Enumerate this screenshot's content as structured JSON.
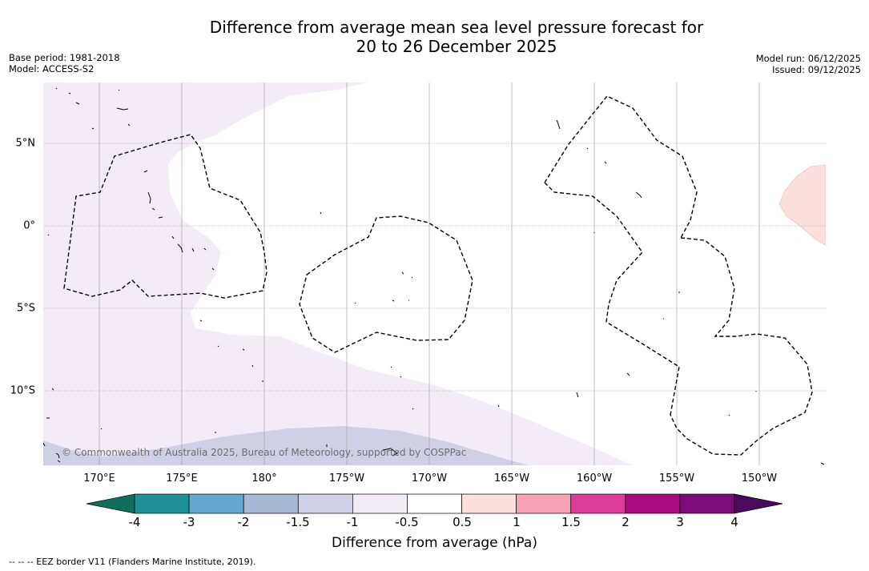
{
  "title": {
    "line1": "Difference from average mean sea level pressure forecast for",
    "line2": "20 to 26 December 2025"
  },
  "meta_left": {
    "base_period": "Base period: 1981-2018",
    "model": "Model: ACCESS-S2"
  },
  "meta_right": {
    "model_run": "Model run: 06/12/2025",
    "issued": "Issued: 09/12/2025"
  },
  "map": {
    "longitude_labels": [
      "170°E",
      "175°E",
      "180°",
      "175°W",
      "170°W",
      "165°W",
      "160°W",
      "155°W",
      "150°W"
    ],
    "latitude_labels": [
      "5°N",
      "0°",
      "5°S",
      "10°S"
    ],
    "copyright": "© Commonwealth of Australia 2025, Bureau of Meteorology, supported by COSPPac"
  },
  "colorbar": {
    "label": "Difference from average (hPa)",
    "ticks": [
      "-4",
      "-3",
      "-2",
      "-1.5",
      "-1",
      "-0.5",
      "0.5",
      "1",
      "1.5",
      "2",
      "3",
      "4"
    ],
    "colors": [
      "#0f6f5c",
      "#1f9196",
      "#64a7d0",
      "#a8b9d6",
      "#cfcfe6",
      "#f3ecf6",
      "#ffffff",
      "#fde0de",
      "#f7a2b6",
      "#dc3b9b",
      "#aa0a7f",
      "#7b0c7a",
      "#4b0a5e"
    ]
  },
  "footnote": "--  --  -- EEZ border V11 (Flanders Marine Institute, 2019)."
}
